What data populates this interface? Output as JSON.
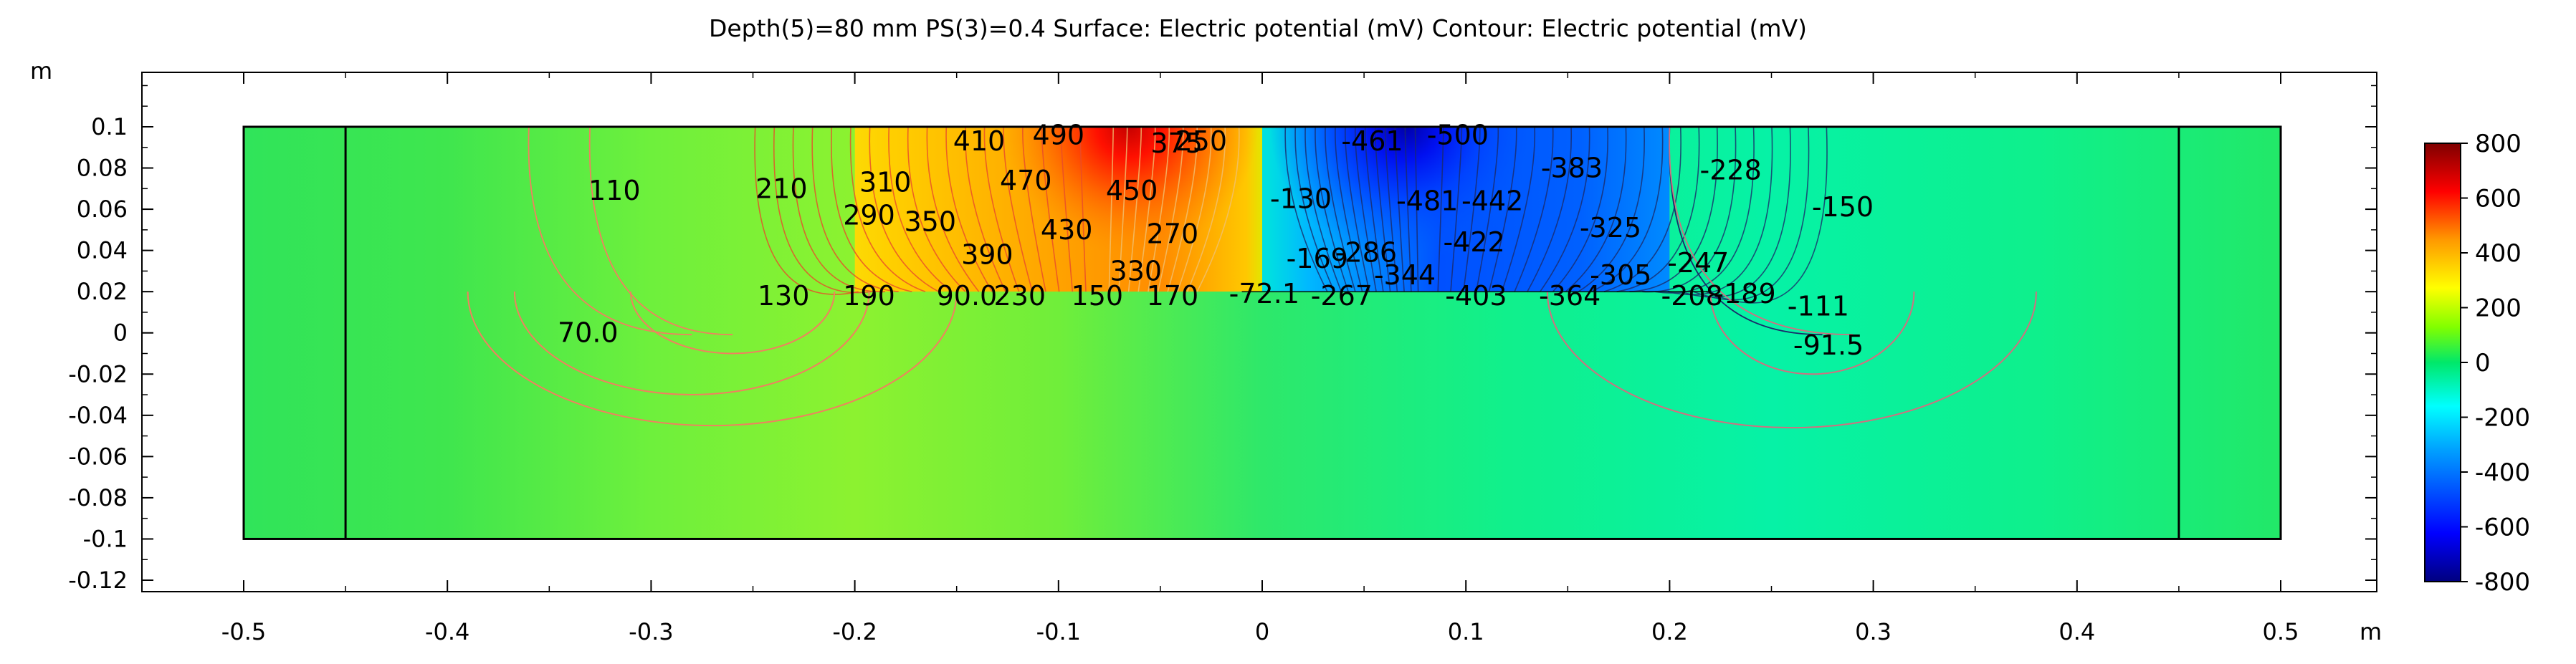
{
  "chart_data": {
    "type": "heatmap",
    "title": "Depth(5)=80 mm PS(3)=0.4   Surface: Electric potential (mV)  Contour: Electric potential (mV)",
    "xlabel": "m",
    "ylabel": "m",
    "xlim": [
      -0.55,
      0.55
    ],
    "ylim": [
      -0.13,
      0.125
    ],
    "x_ticks": [
      -0.5,
      -0.4,
      -0.3,
      -0.2,
      -0.1,
      0,
      0.1,
      0.2,
      0.3,
      0.4,
      0.5
    ],
    "x_tick_labels": [
      "-0.5",
      "-0.4",
      "-0.3",
      "-0.2",
      "-0.1",
      "0",
      "0.1",
      "0.2",
      "0.3",
      "0.4",
      "0.5"
    ],
    "y_ticks": [
      0.1,
      0.08,
      0.06,
      0.04,
      0.02,
      0,
      -0.02,
      -0.04,
      -0.06,
      -0.08,
      -0.1,
      -0.12
    ],
    "y_tick_labels": [
      "0.1",
      "0.08",
      "0.06",
      "0.04",
      "0.02",
      "0",
      "-0.02",
      "-0.04",
      "-0.06",
      "-0.08",
      "-0.1",
      "-0.12"
    ],
    "domain": {
      "outer_x": [
        -0.5,
        0.5
      ],
      "outer_y": [
        -0.1,
        0.1
      ],
      "inner_boundaries_x": [
        -0.45,
        0.45
      ],
      "top_layer_x": [
        -0.2,
        0.2
      ],
      "top_layer_y": [
        0.02,
        0.1
      ]
    },
    "sources": [
      {
        "x": -0.08,
        "y": 0.1,
        "potential": 800
      },
      {
        "x": 0.08,
        "y": 0.1,
        "potential": -800
      }
    ],
    "contour_labels": [
      {
        "text": "410",
        "x": -0.139,
        "y": 0.093
      },
      {
        "text": "490",
        "x": -0.1,
        "y": 0.096
      },
      {
        "text": "375",
        "x": -0.042,
        "y": 0.092
      },
      {
        "text": "250",
        "x": -0.03,
        "y": 0.093
      },
      {
        "text": "110",
        "x": -0.318,
        "y": 0.069
      },
      {
        "text": "210",
        "x": -0.236,
        "y": 0.07
      },
      {
        "text": "310",
        "x": -0.185,
        "y": 0.073
      },
      {
        "text": "470",
        "x": -0.116,
        "y": 0.074
      },
      {
        "text": "450",
        "x": -0.064,
        "y": 0.069
      },
      {
        "text": "290",
        "x": -0.193,
        "y": 0.057
      },
      {
        "text": "350",
        "x": -0.163,
        "y": 0.054
      },
      {
        "text": "430",
        "x": -0.096,
        "y": 0.05
      },
      {
        "text": "270",
        "x": -0.044,
        "y": 0.048
      },
      {
        "text": "390",
        "x": -0.135,
        "y": 0.038
      },
      {
        "text": "330",
        "x": -0.062,
        "y": 0.03
      },
      {
        "text": "130",
        "x": -0.235,
        "y": 0.018
      },
      {
        "text": "190",
        "x": -0.193,
        "y": 0.018
      },
      {
        "text": "90.0",
        "x": -0.145,
        "y": 0.018
      },
      {
        "text": "230",
        "x": -0.119,
        "y": 0.018
      },
      {
        "text": "150",
        "x": -0.081,
        "y": 0.018
      },
      {
        "text": "170",
        "x": -0.044,
        "y": 0.018
      },
      {
        "text": "70.0",
        "x": -0.331,
        "y": 0.0
      },
      {
        "text": "-461",
        "x": 0.054,
        "y": 0.093
      },
      {
        "text": "-500",
        "x": 0.096,
        "y": 0.096
      },
      {
        "text": "-383",
        "x": 0.152,
        "y": 0.08
      },
      {
        "text": "-228",
        "x": 0.23,
        "y": 0.079
      },
      {
        "text": "-130",
        "x": 0.019,
        "y": 0.065
      },
      {
        "text": "-481",
        "x": 0.081,
        "y": 0.064
      },
      {
        "text": "-442",
        "x": 0.113,
        "y": 0.064
      },
      {
        "text": "-150",
        "x": 0.285,
        "y": 0.061
      },
      {
        "text": "-325",
        "x": 0.171,
        "y": 0.051
      },
      {
        "text": "-286",
        "x": 0.051,
        "y": 0.039
      },
      {
        "text": "-422",
        "x": 0.104,
        "y": 0.044
      },
      {
        "text": "-169",
        "x": 0.027,
        "y": 0.036
      },
      {
        "text": "-344",
        "x": 0.07,
        "y": 0.028
      },
      {
        "text": "-247",
        "x": 0.214,
        "y": 0.034
      },
      {
        "text": "-305",
        "x": 0.176,
        "y": 0.028
      },
      {
        "text": "-72.1",
        "x": 0.001,
        "y": 0.019
      },
      {
        "text": "-267",
        "x": 0.039,
        "y": 0.018
      },
      {
        "text": "-403",
        "x": 0.105,
        "y": 0.018
      },
      {
        "text": "-364",
        "x": 0.151,
        "y": 0.018
      },
      {
        "text": "-208",
        "x": 0.211,
        "y": 0.018
      },
      {
        "text": "-189",
        "x": 0.237,
        "y": 0.019
      },
      {
        "text": "-111",
        "x": 0.273,
        "y": 0.013
      },
      {
        "text": "-91.5",
        "x": 0.278,
        "y": -0.006
      }
    ],
    "colorbar": {
      "min": -800,
      "max": 800,
      "ticks": [
        800,
        600,
        400,
        200,
        0,
        -200,
        -400,
        -600,
        -800
      ],
      "tick_labels": [
        "800",
        "600",
        "400",
        "200",
        "0",
        "-200",
        "-400",
        "-600",
        "-800"
      ],
      "colors": [
        "#00007f",
        "#0000ff",
        "#007fff",
        "#00ffff",
        "#00ff80",
        "#80ff00",
        "#ffff00",
        "#ff7f00",
        "#ff0000",
        "#7f0000"
      ]
    }
  }
}
